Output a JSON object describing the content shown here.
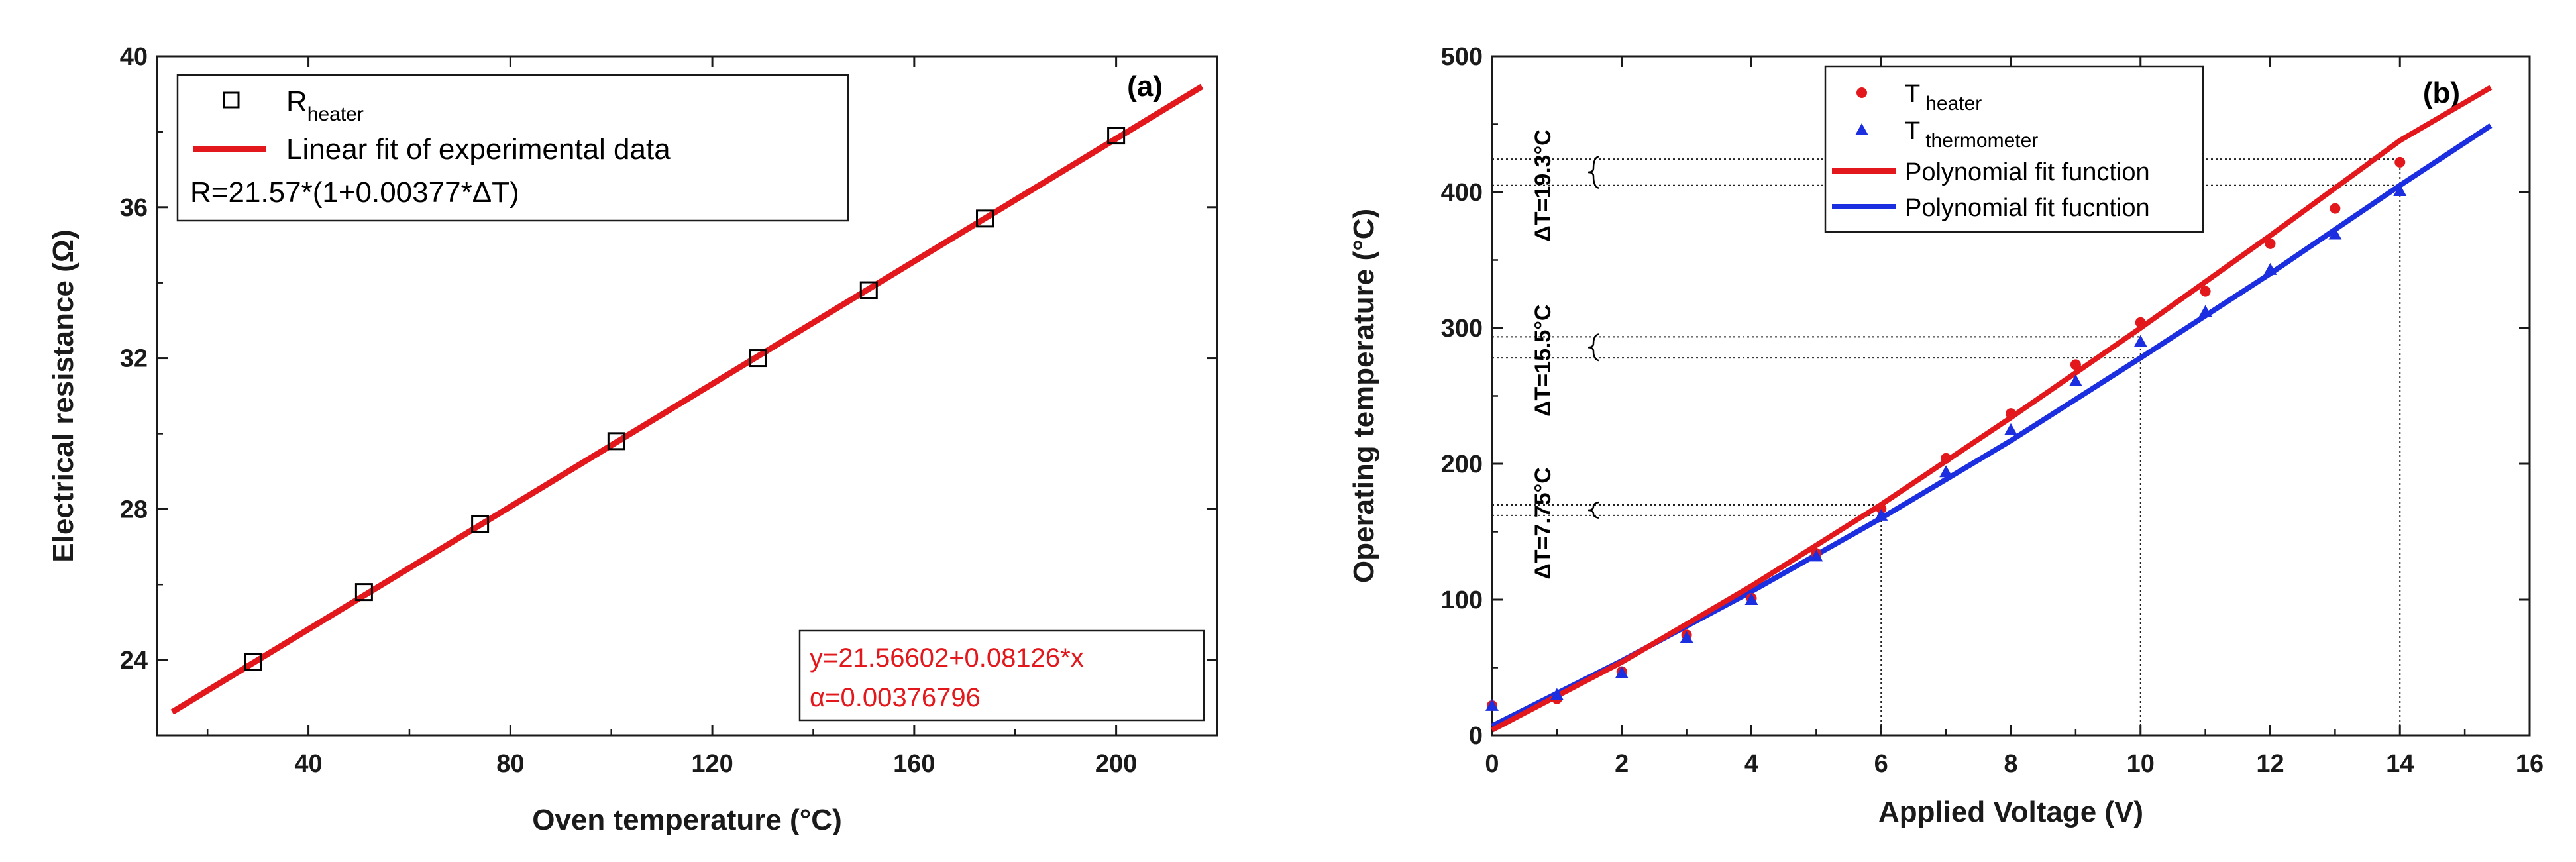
{
  "chart_data": [
    {
      "panel": "(a)",
      "type": "scatter",
      "xlabel": "Oven temperature (°C)",
      "ylabel": "Electrical resistance (Ω)",
      "xlim": [
        10,
        220
      ],
      "ylim": [
        22,
        40
      ],
      "xticks": [
        40,
        80,
        120,
        160,
        200
      ],
      "yticks": [
        24,
        28,
        32,
        36,
        40
      ],
      "series": [
        {
          "name": "R heater",
          "label_main": "R",
          "label_sub": "heater",
          "kind": "scatter",
          "marker": "open-square",
          "color": "#000000",
          "x": [
            29,
            51,
            74,
            101,
            129,
            151,
            174,
            200
          ],
          "y": [
            23.95,
            25.8,
            27.6,
            29.8,
            32.0,
            33.8,
            35.7,
            37.9
          ]
        },
        {
          "name": "Linear fit of experimental data",
          "kind": "line",
          "color": "#e3181c",
          "x": [
            13,
            217
          ],
          "y": [
            22.62,
            39.2
          ]
        }
      ],
      "legend_formula": "R=21.57*(1+0.00377*ΔT)",
      "fit_box": [
        "y=21.56602+0.08126*x",
        "α=0.00376796"
      ],
      "legend_position": "top-left",
      "grid": false
    },
    {
      "panel": "(b)",
      "type": "scatter",
      "xlabel": "Applied Voltage (V)",
      "ylabel": "Operating temperature (°C)",
      "xlim": [
        0,
        16
      ],
      "ylim": [
        0,
        500
      ],
      "xticks": [
        0,
        2,
        4,
        6,
        8,
        10,
        12,
        14,
        16
      ],
      "yticks": [
        0,
        100,
        200,
        300,
        400,
        500
      ],
      "series": [
        {
          "name": "T heater",
          "label_main": "T",
          "label_sub": "heater",
          "kind": "scatter",
          "marker": "circle",
          "color": "#e3181c",
          "x": [
            0,
            1,
            2,
            3,
            4,
            5,
            6,
            7,
            8,
            9,
            10,
            11,
            12,
            13,
            14
          ],
          "y": [
            22,
            27,
            47,
            74,
            101,
            134,
            167,
            204,
            237,
            273,
            304,
            327,
            362,
            388,
            422
          ]
        },
        {
          "name": "T thermometer",
          "label_main": "T",
          "label_sub": "thermometer",
          "kind": "scatter",
          "marker": "triangle",
          "color": "#1c2fe0",
          "x": [
            0,
            1,
            2,
            3,
            4,
            5,
            6,
            7,
            8,
            9,
            10,
            11,
            12,
            13,
            14
          ],
          "y": [
            22,
            30,
            46,
            72,
            100,
            132,
            162,
            194,
            225,
            261,
            290,
            312,
            343,
            369,
            401
          ]
        },
        {
          "name": "Polynomial fit function",
          "kind": "line",
          "color": "#e3181c",
          "x": [
            0,
            2,
            4,
            6,
            8,
            10,
            12,
            14,
            15.4
          ],
          "y": [
            4,
            54,
            110,
            170,
            234,
            300,
            368,
            438,
            477
          ]
        },
        {
          "name": "Polynomial fit fucntion",
          "kind": "line",
          "color": "#1c2fe0",
          "x": [
            0,
            2,
            4,
            6,
            8,
            10,
            12,
            14,
            15.4
          ],
          "y": [
            7,
            55,
            106,
            160,
            217,
            278,
            340,
            405,
            449
          ]
        }
      ],
      "annotations": [
        {
          "label": "ΔT=7.75°C",
          "x": 6,
          "y_low": 162,
          "y_high": 169.75
        },
        {
          "label": "ΔT=15.5°C",
          "x": 10,
          "y_low": 278,
          "y_high": 293.5
        },
        {
          "label": "ΔT=19.3°C",
          "x": 14,
          "y_low": 405,
          "y_high": 424.3
        }
      ],
      "legend_position": "top-center",
      "grid": false
    }
  ]
}
